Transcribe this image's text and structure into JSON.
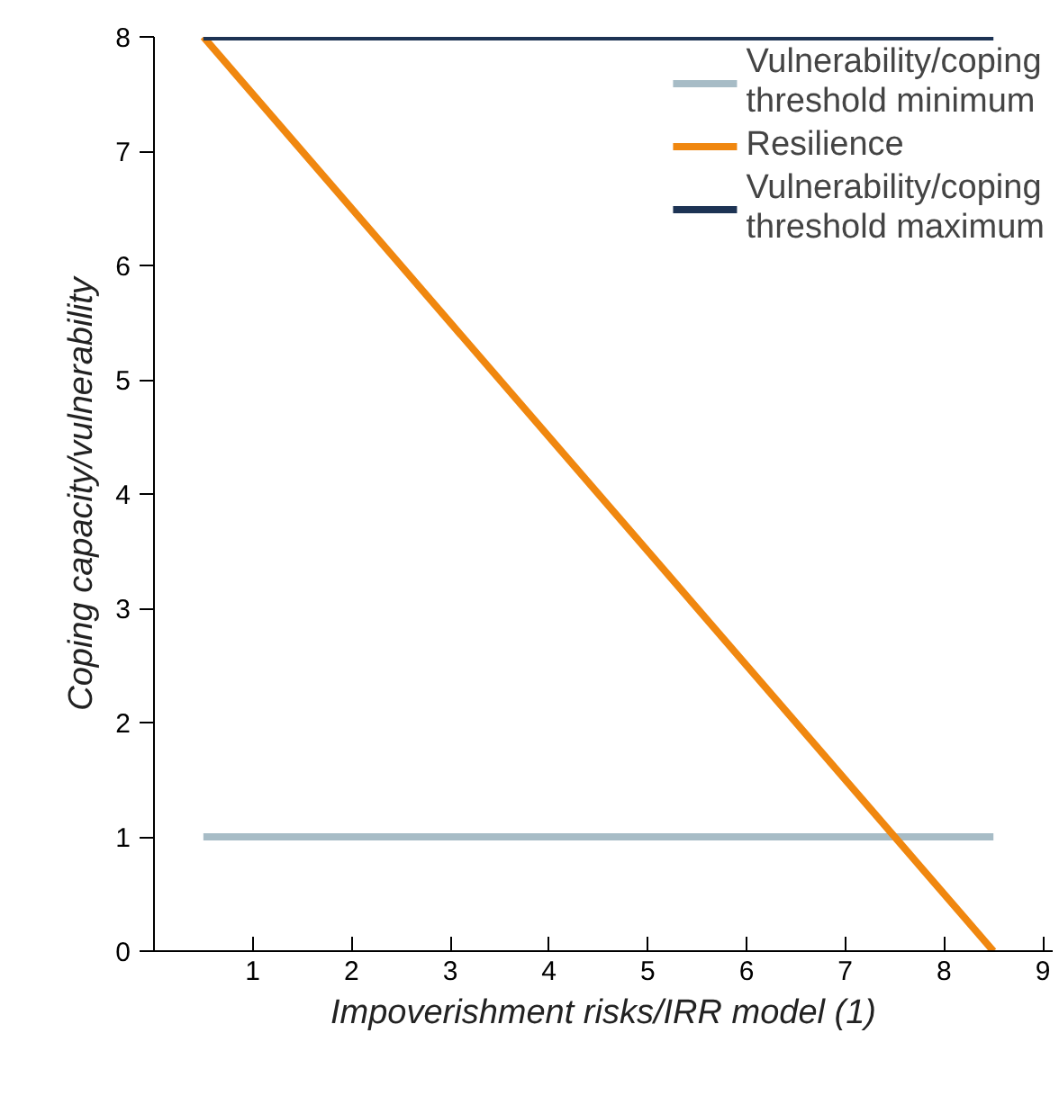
{
  "chart_data": {
    "type": "line",
    "xlabel": "Impoverishment risks/IRR model (1)",
    "ylabel": "Coping capacity/vulnerability",
    "x": [
      0.5,
      8.5
    ],
    "series": [
      {
        "name": "Vulnerability/coping threshold minimum",
        "color": "#a7bcc6",
        "values": [
          1,
          1
        ]
      },
      {
        "name": "Resilience",
        "color": "#f0870f",
        "values": [
          8,
          0
        ]
      },
      {
        "name": "Vulnerability/coping threshold maximum",
        "color": "#1d3354",
        "values": [
          8,
          8
        ]
      }
    ],
    "xlim": [
      0,
      9.1
    ],
    "ylim": [
      0,
      8
    ],
    "xticks": [
      1,
      2,
      3,
      4,
      5,
      6,
      7,
      8,
      9
    ],
    "yticks": [
      0,
      1,
      2,
      3,
      4,
      5,
      6,
      7,
      8
    ],
    "grid": false,
    "legend": "top right",
    "marker": "none",
    "line_style": "solid"
  }
}
